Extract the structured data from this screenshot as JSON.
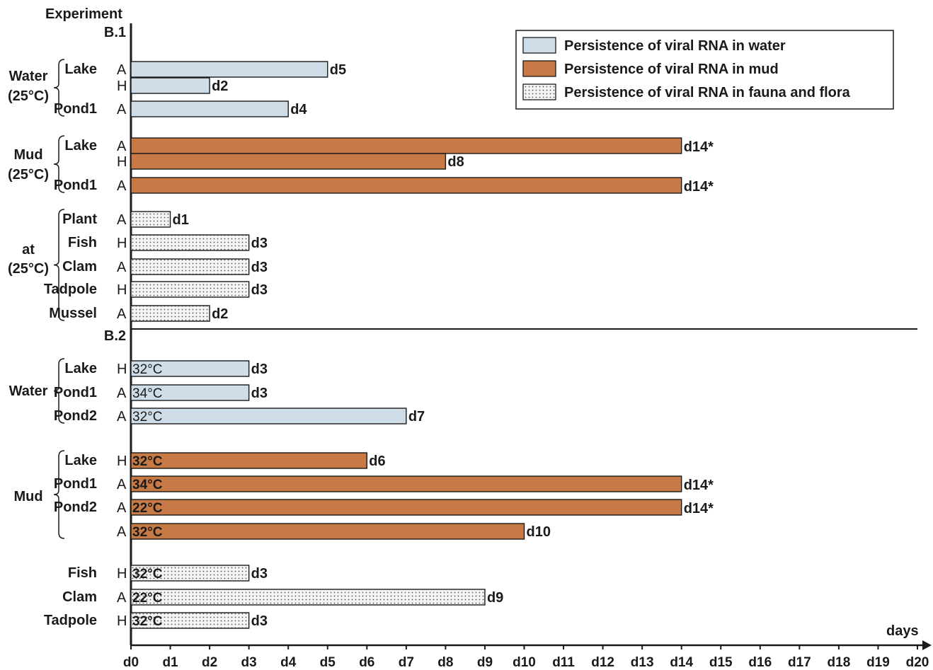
{
  "chart_data": {
    "type": "bar",
    "orientation": "horizontal",
    "y_axis_title": "Experiment",
    "x_axis_title": "days",
    "x_ticks": [
      "d0",
      "d1",
      "d2",
      "d3",
      "d4",
      "d5",
      "d6",
      "d7",
      "d8",
      "d9",
      "d10",
      "d11",
      "d12",
      "d13",
      "d14",
      "d15",
      "d16",
      "d17",
      "d18",
      "d19",
      "d20"
    ],
    "xlim": [
      0,
      20
    ],
    "grid": false,
    "legend_position": "top-right",
    "legend": [
      {
        "key": "water",
        "label": "Persistence of viral RNA in water",
        "color": "#cfdde9"
      },
      {
        "key": "mud",
        "label": "Persistence of viral RNA in mud",
        "color": "#c77a45"
      },
      {
        "key": "fauna",
        "label": "Persistence of viral RNA in fauna and flora",
        "color": "#f2f2f2",
        "pattern": "dots"
      }
    ],
    "panels": [
      {
        "title": "B.1",
        "groups": [
          {
            "label": "Water\n(25°C)",
            "series": "water",
            "rows": [
              {
                "label": "Lake",
                "code": "A",
                "value": 5,
                "end_label": "d5",
                "temp": ""
              },
              {
                "label": "",
                "code": "H",
                "value": 2,
                "end_label": "d2",
                "temp": ""
              },
              {
                "label": "Pond1",
                "code": "A",
                "value": 4,
                "end_label": "d4",
                "temp": ""
              }
            ]
          },
          {
            "label": "Mud\n(25°C)",
            "series": "mud",
            "rows": [
              {
                "label": "Lake",
                "code": "A",
                "value": 14,
                "end_label": "d14*",
                "temp": ""
              },
              {
                "label": "",
                "code": "H",
                "value": 8,
                "end_label": "d8",
                "temp": ""
              },
              {
                "label": "Pond1",
                "code": "A",
                "value": 14,
                "end_label": "d14*",
                "temp": ""
              }
            ]
          },
          {
            "label": "at\n(25°C)",
            "series": "fauna",
            "rows": [
              {
                "label": "Plant",
                "code": "A",
                "value": 1,
                "end_label": "d1",
                "temp": ""
              },
              {
                "label": "Fish",
                "code": "H",
                "value": 3,
                "end_label": "d3",
                "temp": ""
              },
              {
                "label": "Clam",
                "code": "A",
                "value": 3,
                "end_label": "d3",
                "temp": ""
              },
              {
                "label": "Tadpole",
                "code": "H",
                "value": 3,
                "end_label": "d3",
                "temp": ""
              },
              {
                "label": "Mussel",
                "code": "A",
                "value": 2,
                "end_label": "d2",
                "temp": ""
              }
            ]
          }
        ]
      },
      {
        "title": "B.2",
        "groups": [
          {
            "label": "Water",
            "series": "water",
            "rows": [
              {
                "label": "Lake",
                "code": "H",
                "value": 3,
                "end_label": "d3",
                "temp": "32°C"
              },
              {
                "label": "Pond1",
                "code": "A",
                "value": 3,
                "end_label": "d3",
                "temp": "34°C"
              },
              {
                "label": "Pond2",
                "code": "A",
                "value": 7,
                "end_label": "d7",
                "temp": "32°C"
              }
            ]
          },
          {
            "label": "Mud",
            "series": "mud",
            "rows": [
              {
                "label": "Lake",
                "code": "H",
                "value": 6,
                "end_label": "d6",
                "temp": "32°C"
              },
              {
                "label": "Pond1",
                "code": "A",
                "value": 14,
                "end_label": "d14*",
                "temp": "34°C"
              },
              {
                "label": "Pond2",
                "code": "A",
                "value": 14,
                "end_label": "d14*",
                "temp": "22°C"
              },
              {
                "label": "",
                "code": "A",
                "value": 10,
                "end_label": "d10",
                "temp": "32°C"
              }
            ]
          },
          {
            "label": "",
            "series": "fauna",
            "rows": [
              {
                "label": "Fish",
                "code": "H",
                "value": 3,
                "end_label": "d3",
                "temp": "32°C"
              },
              {
                "label": "Clam",
                "code": "A",
                "value": 9,
                "end_label": "d9",
                "temp": "22°C"
              },
              {
                "label": "Tadpole",
                "code": "H",
                "value": 3,
                "end_label": "d3",
                "temp": "32°C"
              }
            ]
          }
        ]
      }
    ]
  }
}
